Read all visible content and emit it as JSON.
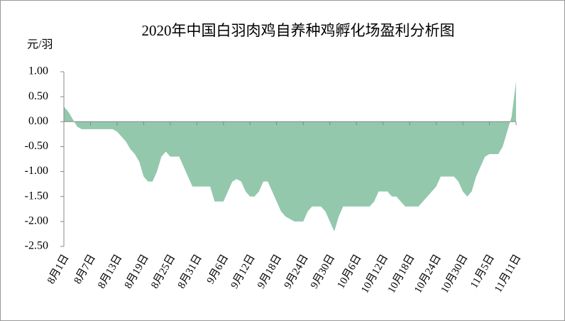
{
  "chart_data": {
    "type": "area",
    "title": "2020年中国白羽肉鸡自养种鸡孵化场盈利分析图",
    "y_unit": "元/羽",
    "categories": [
      "8月1日",
      null,
      null,
      null,
      null,
      null,
      "8月7日",
      null,
      null,
      null,
      null,
      null,
      "8月13日",
      null,
      null,
      null,
      null,
      null,
      "8月19日",
      null,
      null,
      null,
      null,
      null,
      "8月25日",
      null,
      null,
      null,
      null,
      null,
      "8月31日",
      null,
      null,
      null,
      null,
      null,
      "9月6日",
      null,
      null,
      null,
      null,
      null,
      "9月12日",
      null,
      null,
      null,
      null,
      null,
      "9月18日",
      null,
      null,
      null,
      null,
      null,
      "9月24日",
      null,
      null,
      null,
      null,
      null,
      "9月30日",
      null,
      null,
      null,
      null,
      null,
      "10月6日",
      null,
      null,
      null,
      null,
      null,
      "10月12日",
      null,
      null,
      null,
      null,
      null,
      "10月18日",
      null,
      null,
      null,
      null,
      null,
      "10月24日",
      null,
      null,
      null,
      null,
      null,
      "10月30日",
      null,
      null,
      null,
      null,
      null,
      "11月5日",
      null,
      null,
      null,
      null,
      null,
      "11月11日"
    ],
    "values": [
      0.3,
      0.2,
      0.05,
      -0.1,
      -0.15,
      -0.15,
      -0.15,
      -0.15,
      -0.15,
      -0.15,
      -0.15,
      -0.15,
      -0.2,
      -0.3,
      -0.4,
      -0.55,
      -0.65,
      -0.8,
      -1.1,
      -1.2,
      -1.2,
      -1.0,
      -0.7,
      -0.6,
      -0.7,
      -0.7,
      -0.7,
      -0.9,
      -1.1,
      -1.3,
      -1.3,
      -1.3,
      -1.3,
      -1.3,
      -1.6,
      -1.6,
      -1.6,
      -1.4,
      -1.2,
      -1.15,
      -1.2,
      -1.4,
      -1.5,
      -1.5,
      -1.4,
      -1.2,
      -1.2,
      -1.4,
      -1.6,
      -1.8,
      -1.9,
      -1.95,
      -2.0,
      -2.0,
      -2.0,
      -1.8,
      -1.7,
      -1.7,
      -1.7,
      -1.8,
      -2.0,
      -2.2,
      -1.9,
      -1.7,
      -1.7,
      -1.7,
      -1.7,
      -1.7,
      -1.7,
      -1.7,
      -1.6,
      -1.4,
      -1.4,
      -1.4,
      -1.5,
      -1.5,
      -1.6,
      -1.7,
      -1.7,
      -1.7,
      -1.7,
      -1.6,
      -1.5,
      -1.4,
      -1.3,
      -1.1,
      -1.1,
      -1.1,
      -1.1,
      -1.2,
      -1.4,
      -1.5,
      -1.4,
      -1.1,
      -0.9,
      -0.7,
      -0.65,
      -0.65,
      -0.65,
      -0.5,
      -0.2,
      0.1,
      0.8
    ],
    "color": "#93c8ad",
    "ylim": [
      -2.5,
      1
    ],
    "yticks": [
      {
        "value": 1,
        "label": "1.00"
      },
      {
        "value": 0.5,
        "label": "0.50"
      },
      {
        "value": 0,
        "label": "0.00"
      },
      {
        "value": -0.5,
        "label": "-0.50"
      },
      {
        "value": -1,
        "label": "-1.00"
      },
      {
        "value": -1.5,
        "label": "-1.50"
      },
      {
        "value": -2,
        "label": "-2.00"
      },
      {
        "value": -2.5,
        "label": "-2.50"
      }
    ],
    "grid": false
  }
}
